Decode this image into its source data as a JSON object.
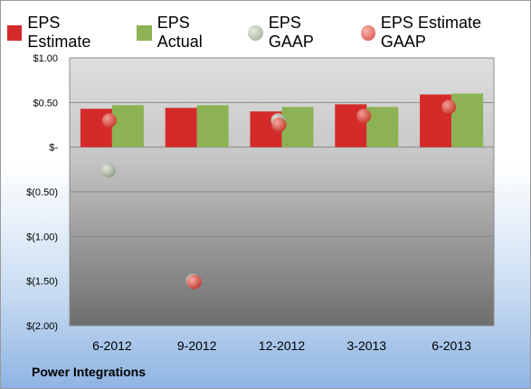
{
  "company": "Power Integrations",
  "colors": {
    "estimate": "#d42a2a",
    "actual": "#8db254",
    "gaap": "#b3bfa6",
    "estimate_gaap": "#e0605a"
  },
  "chart_data": {
    "type": "bar",
    "categories": [
      "6-2012",
      "9-2012",
      "12-2012",
      "3-2013",
      "6-2013"
    ],
    "series": [
      {
        "name": "EPS Estimate",
        "kind": "bar",
        "values": [
          0.43,
          0.44,
          0.4,
          0.48,
          0.59
        ]
      },
      {
        "name": "EPS Actual",
        "kind": "bar",
        "values": [
          0.47,
          0.47,
          0.45,
          0.45,
          0.6
        ]
      },
      {
        "name": "EPS GAAP",
        "kind": "dot",
        "values": [
          -0.26,
          -1.5,
          0.3,
          null,
          null
        ]
      },
      {
        "name": "EPS Estimate GAAP",
        "kind": "dot",
        "values": [
          0.3,
          -1.51,
          0.25,
          0.35,
          0.45
        ]
      }
    ],
    "yticks": [
      1.0,
      0.5,
      0,
      -0.5,
      -1.0,
      -1.5,
      -2.0
    ],
    "ytick_labels": [
      "$1.00",
      "$0.50",
      "$-",
      "$(0.50)",
      "$(1.00)",
      "$(1.50)",
      "$(2.00)"
    ],
    "ylim": [
      -2.0,
      1.0
    ],
    "grid": true,
    "legend": "top"
  }
}
